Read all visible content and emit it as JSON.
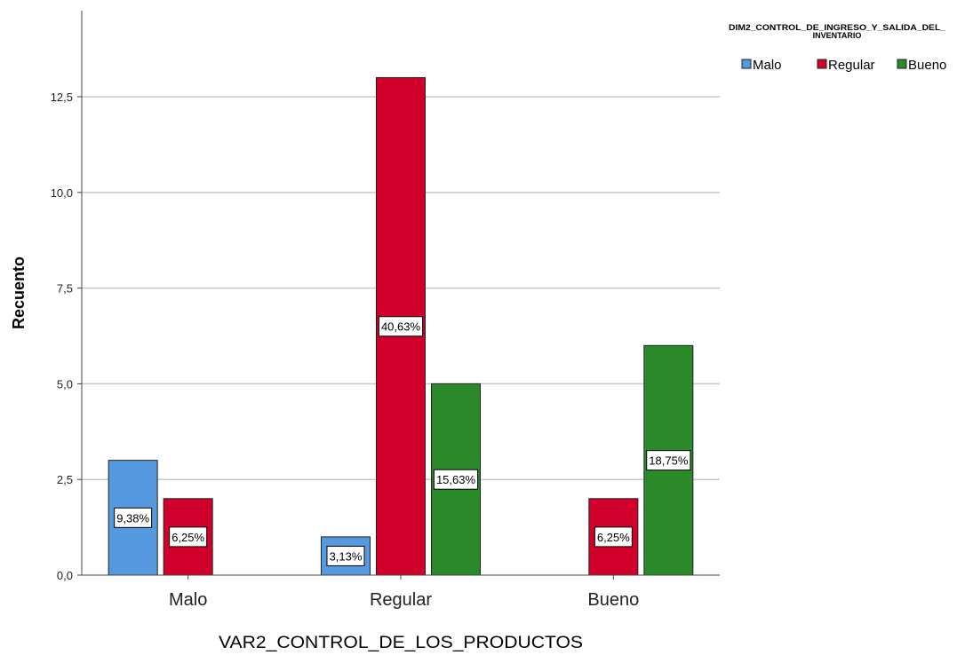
{
  "chart_data": {
    "type": "bar",
    "xlabel": "VAR2_CONTROL_DE_LOS_PRODUCTOS",
    "ylabel": "Recuento",
    "ylim": [
      0,
      14.75
    ],
    "yticks": [
      "0,0",
      "2,5",
      "5,0",
      "7,5",
      "10,0",
      "12,5"
    ],
    "ytick_values": [
      0,
      2.5,
      5,
      7.5,
      10,
      12.5
    ],
    "grid": true,
    "categories": [
      "Malo",
      "Regular",
      "Bueno"
    ],
    "legend": {
      "title_line1": "DIM2_CONTROL_DE_INGRESO_Y_SALIDA_DEL_",
      "title_line2": "INVENTARIO",
      "placement": "top-right"
    },
    "series": [
      {
        "name": "Malo",
        "color": "#5599e0",
        "values": [
          3,
          1,
          0
        ],
        "labels": [
          "9,38%",
          "3,13%",
          ""
        ]
      },
      {
        "name": "Regular",
        "color": "#d0002b",
        "values": [
          2,
          13,
          2
        ],
        "labels": [
          "6,25%",
          "40,63%",
          "6,25%"
        ]
      },
      {
        "name": "Bueno",
        "color": "#2a8a2a",
        "values": [
          0,
          5,
          6
        ],
        "labels": [
          "",
          "15,63%",
          "18,75%"
        ]
      }
    ]
  }
}
